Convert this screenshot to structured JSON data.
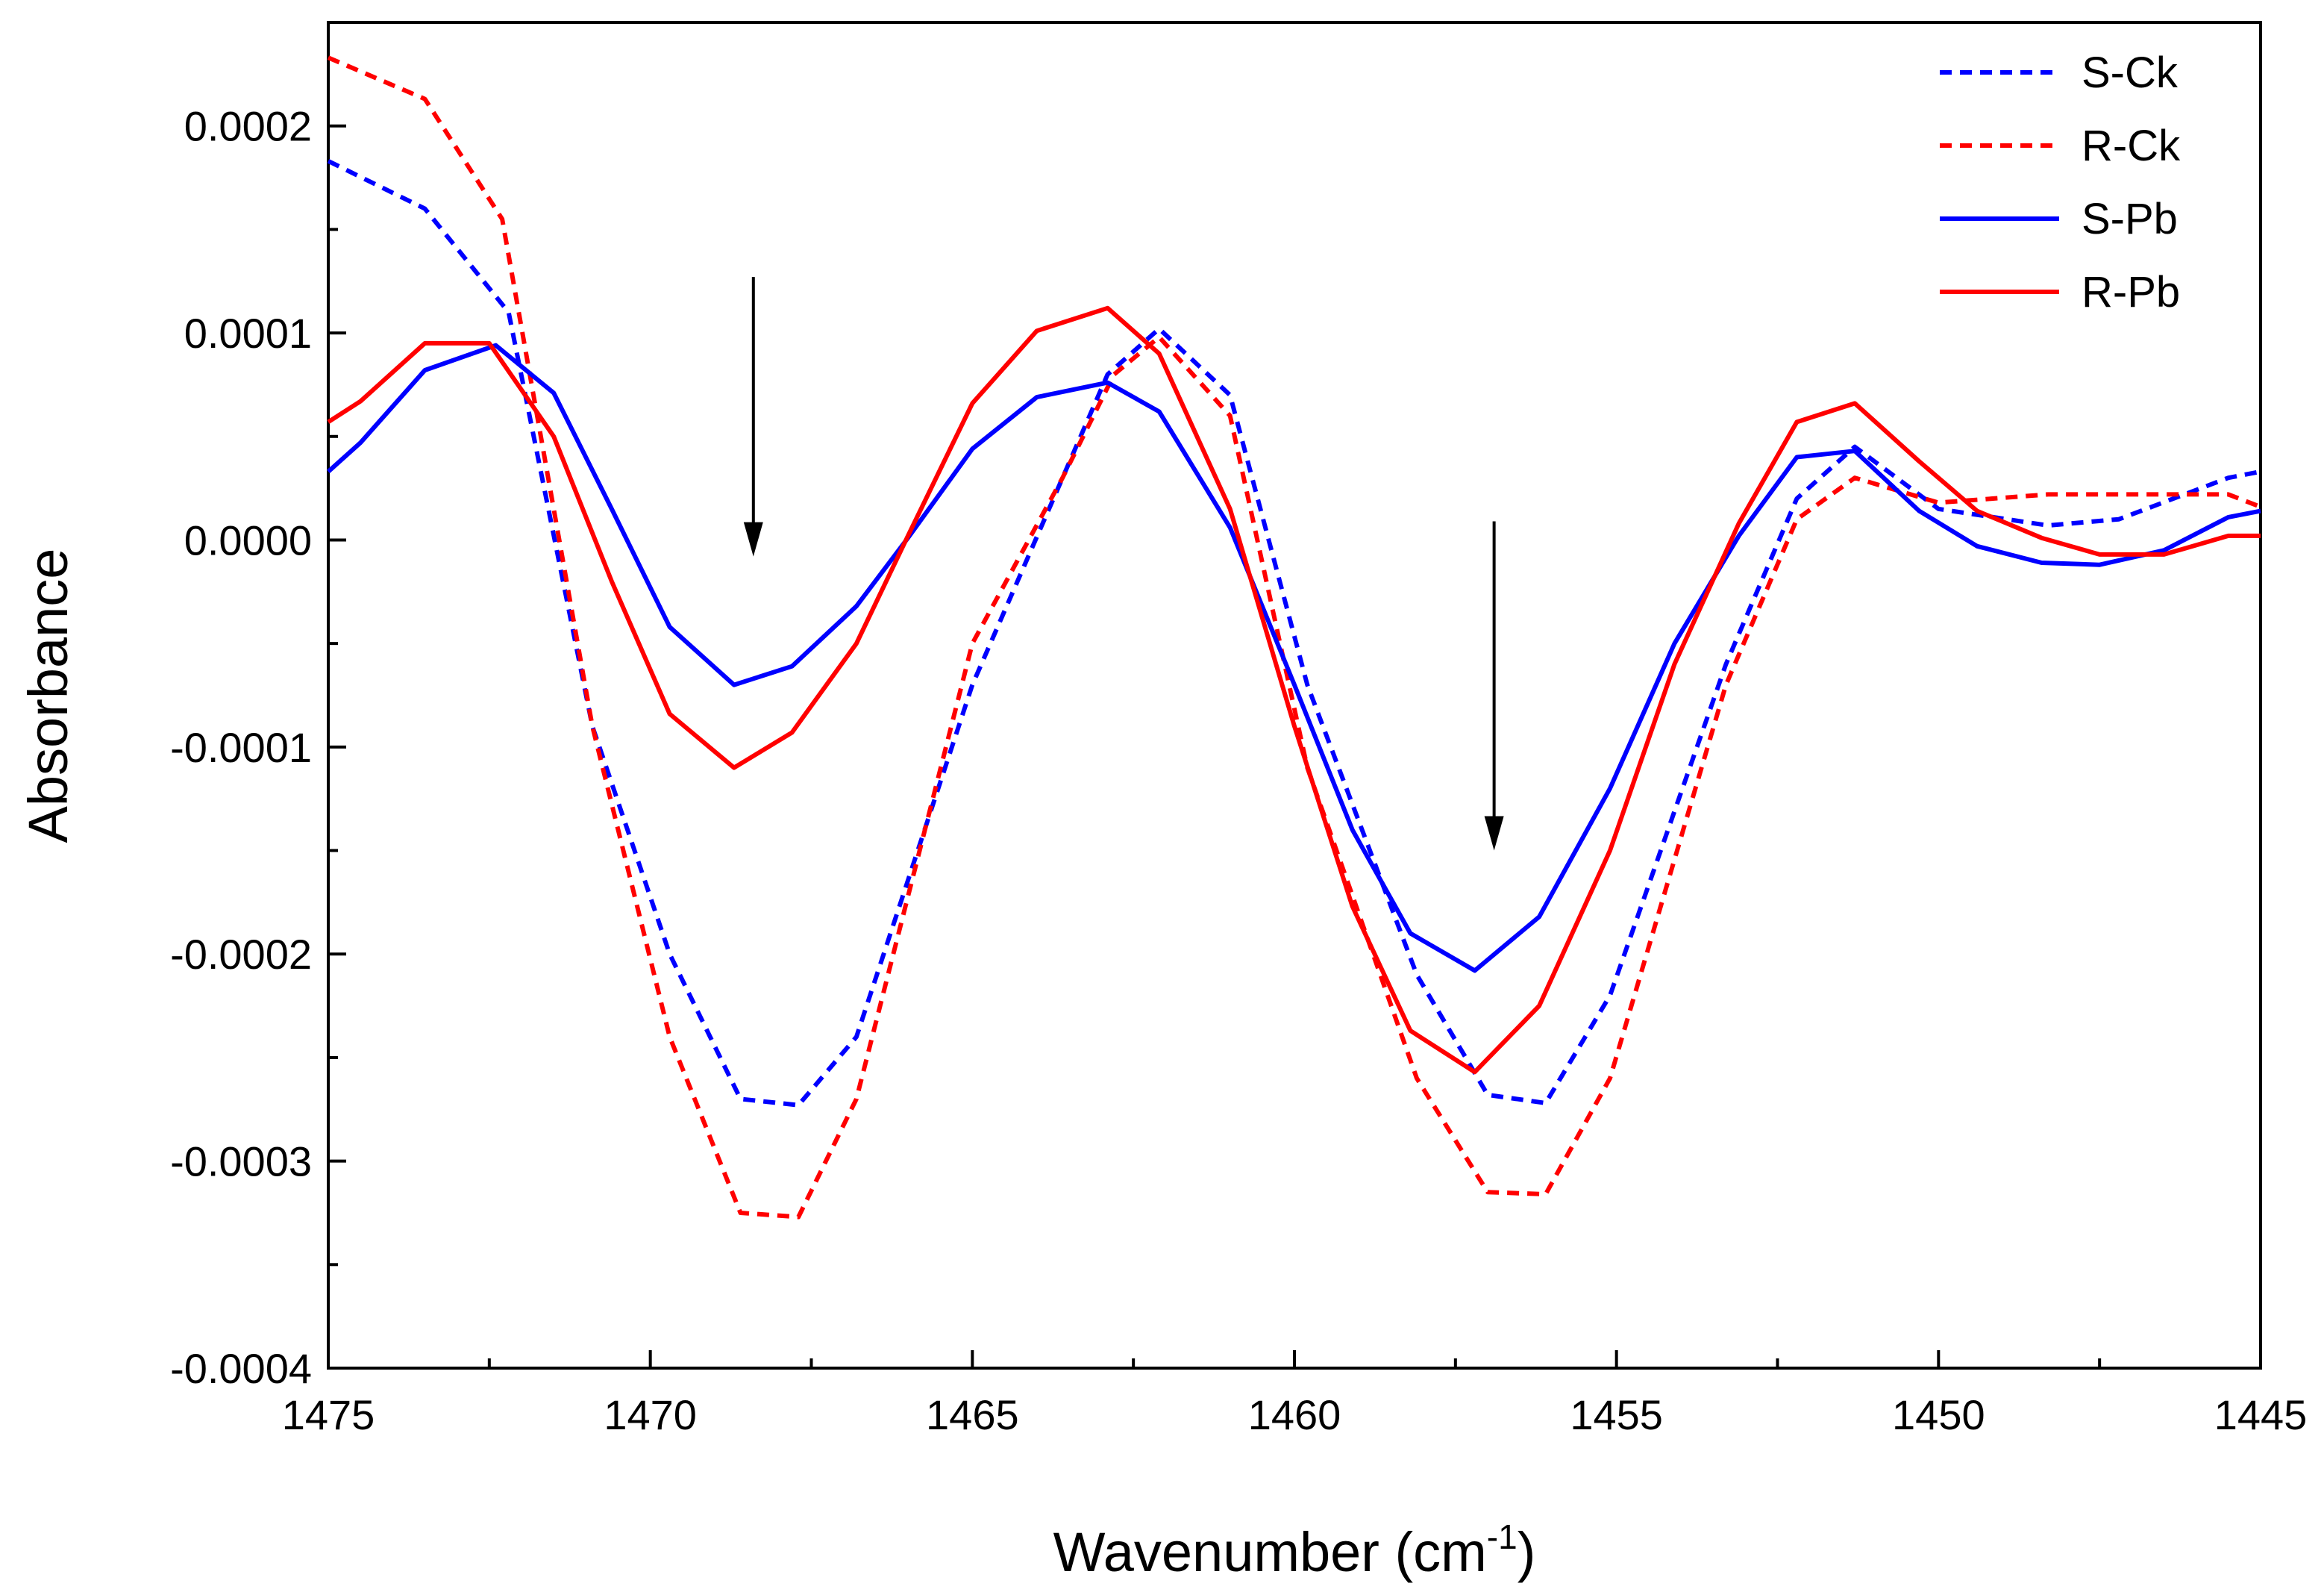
{
  "chart_data": {
    "type": "line",
    "title": "",
    "xlabel_main": "Wavenumber (cm",
    "xlabel_sup": "-1",
    "xlabel_tail": ")",
    "ylabel": "Absorbance",
    "xlim": [
      1475,
      1445
    ],
    "ylim": [
      -0.0004,
      0.00025
    ],
    "xticks": [
      1475,
      1470,
      1465,
      1460,
      1455,
      1450,
      1445
    ],
    "xtick_labels": [
      "1475",
      "1470",
      "1465",
      "1460",
      "1455",
      "1450",
      "1445"
    ],
    "yticks": [
      -0.0004,
      -0.0003,
      -0.0002,
      -0.0001,
      0.0,
      0.0001,
      0.0002
    ],
    "ytick_labels": [
      "-0.0004",
      "-0.0003",
      "-0.0002",
      "-0.0001",
      "0.0000",
      "0.0001",
      "0.0002"
    ],
    "legend_position": "top-right",
    "series": [
      {
        "name": "S-Ck",
        "color": "#0000ff",
        "style": "dashed",
        "x": [
          1475,
          1473.5,
          1472.2,
          1470.9,
          1469.7,
          1468.6,
          1467.7,
          1466.8,
          1465,
          1463.6,
          1462.9,
          1462.1,
          1461,
          1459.8,
          1458.1,
          1457,
          1456.1,
          1455.1,
          1453.3,
          1452.2,
          1451.3,
          1450,
          1448.3,
          1447.2,
          1445.5,
          1445
        ],
        "y": [
          0.000183,
          0.00016,
          0.00011,
          -9e-05,
          -0.0002,
          -0.00027,
          -0.000273,
          -0.00024,
          -7e-05,
          3e-05,
          8e-05,
          0.000102,
          7e-05,
          -7e-05,
          -0.00021,
          -0.000268,
          -0.000272,
          -0.00022,
          -6e-05,
          2e-05,
          4.5e-05,
          1.5e-05,
          7e-06,
          1e-05,
          3e-05,
          3.3e-05
        ]
      },
      {
        "name": "R-Ck",
        "color": "#ff0000",
        "style": "dashed",
        "x": [
          1475,
          1473.5,
          1472.3,
          1470.9,
          1469.7,
          1468.6,
          1467.7,
          1466.8,
          1465,
          1463.6,
          1462.8,
          1462.1,
          1461,
          1459.8,
          1458.1,
          1457,
          1456.1,
          1455.1,
          1453.3,
          1452.2,
          1451.3,
          1450,
          1448.3,
          1446.5,
          1445.5,
          1445
        ],
        "y": [
          0.000233,
          0.000213,
          0.000155,
          -9e-05,
          -0.00024,
          -0.000325,
          -0.000327,
          -0.00027,
          -5e-05,
          3e-05,
          8e-05,
          9.8e-05,
          6e-05,
          -0.00011,
          -0.00026,
          -0.000315,
          -0.000316,
          -0.00026,
          -7e-05,
          1e-05,
          3e-05,
          1.8e-05,
          2.2e-05,
          2.2e-05,
          2.2e-05,
          1.6e-05
        ]
      },
      {
        "name": "S-Pb",
        "color": "#0000ff",
        "style": "solid",
        "x": [
          1475,
          1474.5,
          1473.5,
          1472.4,
          1471.5,
          1470.6,
          1469.7,
          1468.7,
          1467.8,
          1466.8,
          1466,
          1465,
          1464,
          1462.9,
          1462.1,
          1461,
          1460,
          1459.1,
          1458.2,
          1457.2,
          1456.2,
          1455.1,
          1454.1,
          1453.1,
          1452.2,
          1451.3,
          1450.3,
          1449.4,
          1448.4,
          1447.5,
          1446.5,
          1445.5,
          1445
        ],
        "y": [
          3.3e-05,
          4.7e-05,
          8.2e-05,
          9.4e-05,
          7.1e-05,
          1.5e-05,
          -4.2e-05,
          -7e-05,
          -6.1e-05,
          -3.2e-05,
          1e-06,
          4.4e-05,
          6.9e-05,
          7.6e-05,
          6.2e-05,
          6e-06,
          -7e-05,
          -0.00014,
          -0.00019,
          -0.000208,
          -0.000182,
          -0.00012,
          -5e-05,
          2e-06,
          4e-05,
          4.3e-05,
          1.4e-05,
          -3e-06,
          -1.1e-05,
          -1.2e-05,
          -5e-06,
          1.1e-05,
          1.4e-05
        ]
      },
      {
        "name": "R-Pb",
        "color": "#ff0000",
        "style": "solid",
        "x": [
          1475,
          1474.5,
          1473.5,
          1472.5,
          1471.5,
          1470.6,
          1469.7,
          1468.7,
          1467.8,
          1466.8,
          1466,
          1465,
          1464,
          1462.9,
          1462.1,
          1461,
          1460,
          1459.1,
          1458.2,
          1457.2,
          1456.2,
          1455.1,
          1454.1,
          1453.1,
          1452.2,
          1451.3,
          1450.3,
          1449.4,
          1448.4,
          1447.5,
          1446.5,
          1445.5,
          1445
        ],
        "y": [
          5.7e-05,
          6.7e-05,
          9.5e-05,
          9.5e-05,
          5e-05,
          -2e-05,
          -8.4e-05,
          -0.00011,
          -9.3e-05,
          -5e-05,
          2e-06,
          6.6e-05,
          0.000101,
          0.000112,
          9e-05,
          1.5e-05,
          -9e-05,
          -0.000177,
          -0.000237,
          -0.000257,
          -0.000225,
          -0.00015,
          -6e-05,
          8e-06,
          5.7e-05,
          6.6e-05,
          3.8e-05,
          1.4e-05,
          1e-06,
          -7e-06,
          -7e-06,
          2e-06,
          2e-06
        ]
      }
    ],
    "arrows": [
      {
        "x": 1468.4,
        "y_from": 0.000127,
        "y_to": -8e-06
      },
      {
        "x": 1456.9,
        "y_from": 9e-06,
        "y_to": -0.00015
      }
    ]
  }
}
